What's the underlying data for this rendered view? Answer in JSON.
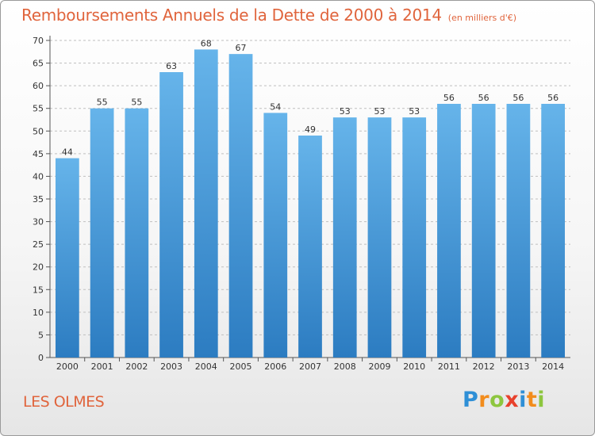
{
  "header": {
    "title": "Remboursements Annuels de la Dette de 2000 à 2014",
    "unit": "(en milliers d'€)"
  },
  "footer": {
    "commune": "LES OLMES",
    "brand_letters": [
      {
        "char": "P",
        "color": "#2e8fd6"
      },
      {
        "char": "r",
        "color": "#f28c1c"
      },
      {
        "char": "o",
        "color": "#8dc63f"
      },
      {
        "char": "x",
        "color": "#e8412c"
      },
      {
        "char": "i",
        "color": "#2e8fd6"
      },
      {
        "char": "t",
        "color": "#f28c1c"
      },
      {
        "char": "i",
        "color": "#8dc63f"
      }
    ]
  },
  "colors": {
    "bar_top": "#66b4ea",
    "bar_bottom": "#2c7cc1",
    "title": "#e0643c",
    "grid": "#bfbfbf"
  },
  "chart_data": {
    "type": "bar",
    "title": "Remboursements Annuels de la Dette de 2000 à 2014",
    "subtitle": "(en milliers d'€)",
    "categories": [
      "2000",
      "2001",
      "2002",
      "2003",
      "2004",
      "2005",
      "2006",
      "2007",
      "2008",
      "2009",
      "2010",
      "2011",
      "2012",
      "2013",
      "2014"
    ],
    "values": [
      44,
      55,
      55,
      63,
      68,
      67,
      54,
      49,
      53,
      53,
      53,
      56,
      56,
      56,
      56
    ],
    "data_labels": [
      "44",
      "55",
      "55",
      "63",
      "68",
      "67",
      "54",
      "49",
      "53",
      "53",
      "53",
      "56",
      "56",
      "56",
      "56"
    ],
    "ylim": [
      0,
      70
    ],
    "y_ticks": [
      "0",
      "5",
      "10",
      "15",
      "20",
      "25",
      "30",
      "35",
      "40",
      "45",
      "50",
      "55",
      "60",
      "65",
      "70"
    ],
    "grid": true,
    "legend": "none"
  }
}
